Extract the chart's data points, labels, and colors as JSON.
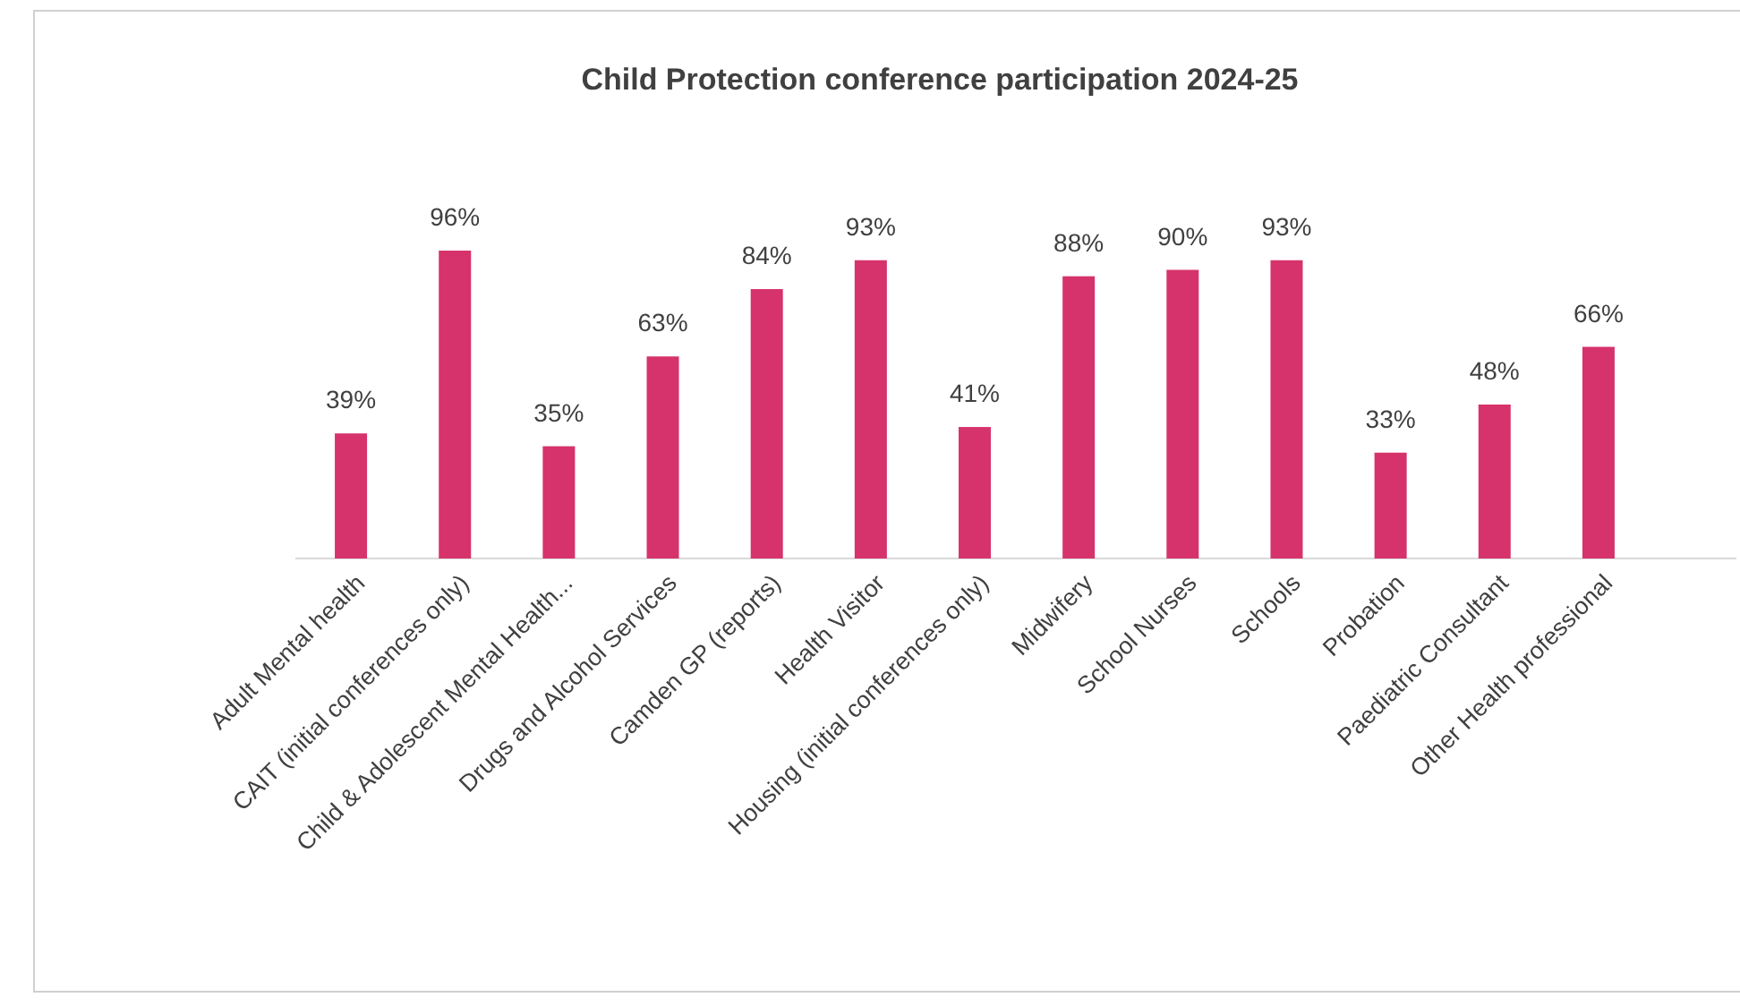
{
  "chart_data": {
    "type": "bar",
    "title": "Child Protection conference participation 2024-25",
    "categories": [
      "Adult Mental health",
      "CAIT (initial conferences only)",
      "Child & Adolescent Mental Health...",
      "Drugs and Alcohol Services",
      "Camden GP (reports)",
      "Health Visitor",
      "Housing (initial conferences only)",
      "Midwifery",
      "School Nurses",
      "Schools",
      "Probation",
      "Paediatric Consultant",
      "Other Health professional"
    ],
    "values": [
      39,
      96,
      35,
      63,
      84,
      93,
      41,
      88,
      90,
      93,
      33,
      48,
      66
    ],
    "value_labels": [
      "39%",
      "96%",
      "35%",
      "63%",
      "84%",
      "93%",
      "41%",
      "88%",
      "90%",
      "93%",
      "33%",
      "48%",
      "66%"
    ],
    "color": "#d6336c"
  }
}
